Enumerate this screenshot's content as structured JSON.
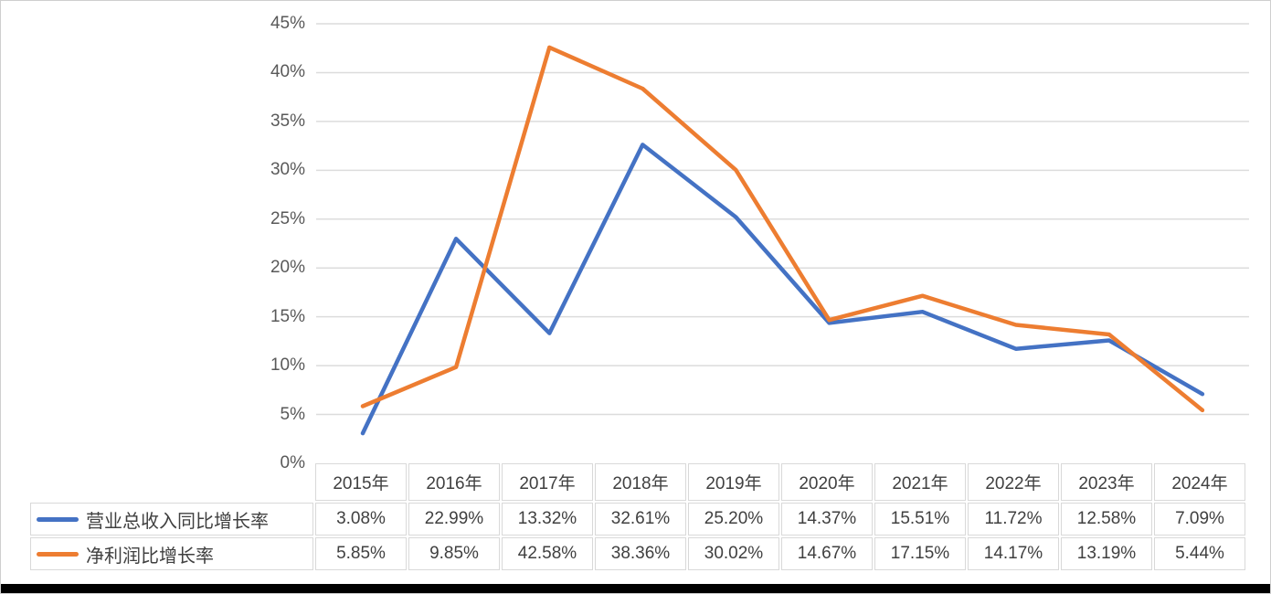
{
  "chart_data": {
    "type": "line",
    "title": "",
    "xlabel": "",
    "ylabel": "",
    "categories": [
      "2015年",
      "2016年",
      "2017年",
      "2018年",
      "2019年",
      "2020年",
      "2021年",
      "2022年",
      "2023年",
      "2024年"
    ],
    "series": [
      {
        "name": "营业总收入同比增长率",
        "color": "#4472C4",
        "values": [
          3.08,
          22.99,
          13.32,
          32.61,
          25.2,
          14.37,
          15.51,
          11.72,
          12.58,
          7.09
        ],
        "display_values": [
          "3.08%",
          "22.99%",
          "13.32%",
          "32.61%",
          "25.20%",
          "14.37%",
          "15.51%",
          "11.72%",
          "12.58%",
          "7.09%"
        ]
      },
      {
        "name": "净利润比增长率",
        "color": "#ED7D31",
        "values": [
          5.85,
          9.85,
          42.58,
          38.36,
          30.02,
          14.67,
          17.15,
          14.17,
          13.19,
          5.44
        ],
        "display_values": [
          "5.85%",
          "9.85%",
          "42.58%",
          "38.36%",
          "30.02%",
          "14.67%",
          "17.15%",
          "14.17%",
          "13.19%",
          "5.44%"
        ]
      }
    ],
    "ylim": [
      0,
      45
    ],
    "ytick_step": 5,
    "y_tick_labels": [
      "45%",
      "40%",
      "35%",
      "30%",
      "25%",
      "20%",
      "15%",
      "10%",
      "5%",
      "0%"
    ],
    "grid": true,
    "legend_position": "data-table-left"
  },
  "colors": {
    "gridline": "#DCDCDC",
    "table_border": "#D9D9D9",
    "axis_text": "#595959",
    "table_text": "#404040",
    "bottom_bar": "#000000",
    "background": "#FFFFFF"
  }
}
